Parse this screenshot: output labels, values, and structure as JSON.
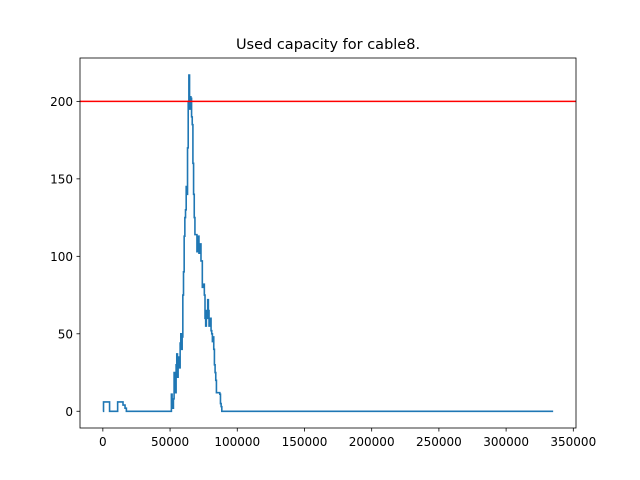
{
  "chart_data": {
    "type": "line",
    "title": "Used capacity for cable8.",
    "xlabel": "",
    "ylabel": "",
    "xlim": [
      -17000,
      352000
    ],
    "ylim": [
      -10.8,
      228
    ],
    "x_ticks": [
      0,
      50000,
      100000,
      150000,
      200000,
      250000,
      300000,
      350000
    ],
    "x_tick_labels": [
      "0",
      "50000",
      "100000",
      "150000",
      "200000",
      "250000",
      "300000",
      "350000"
    ],
    "y_ticks": [
      0,
      50,
      100,
      150,
      200
    ],
    "y_tick_labels": [
      "0",
      "50",
      "100",
      "150",
      "200"
    ],
    "grid": false,
    "series": [
      {
        "color": "#1f77b4",
        "step": true,
        "x": [
          0,
          500,
          4500,
          5000,
          10500,
          11000,
          12000,
          13000,
          15000,
          16500,
          17500,
          40000,
          50500,
          51000,
          51500,
          52000,
          52500,
          53000,
          53500,
          54000,
          54500,
          55000,
          55500,
          56000,
          56500,
          57000,
          57500,
          58000,
          58500,
          59000,
          59500,
          60000,
          60500,
          61000,
          61500,
          62000,
          62500,
          63000,
          63500,
          64000,
          64500,
          65000,
          65500,
          66000,
          66500,
          67000,
          67500,
          68000,
          68500,
          69000,
          69500,
          70000,
          70500,
          71000,
          71500,
          72000,
          73000,
          74000,
          75000,
          75500,
          76000,
          76500,
          77000,
          77500,
          78000,
          78500,
          79000,
          80000,
          80500,
          81000,
          81500,
          82000,
          82500,
          83000,
          83500,
          84000,
          84500,
          85000,
          85500,
          86000,
          86500,
          87000,
          87500,
          88000,
          88500,
          89000,
          89500,
          90000,
          91000,
          94000,
          96000,
          98000,
          100000,
          102000,
          103000,
          104000,
          105000,
          335000
        ],
        "y": [
          0,
          6,
          6,
          0,
          0,
          6,
          6,
          6,
          4,
          2,
          0,
          0,
          0,
          11,
          3,
          2,
          8,
          25,
          20,
          12,
          30,
          37,
          22,
          35,
          33,
          28,
          44,
          50,
          40,
          48,
          75,
          90,
          113,
          125,
          130,
          145,
          140,
          170,
          200,
          217,
          195,
          203,
          202,
          190,
          185,
          160,
          140,
          125,
          114,
          114,
          114,
          103,
          110,
          113,
          102,
          108,
          97,
          80,
          82,
          75,
          60,
          55,
          65,
          60,
          72,
          65,
          55,
          60,
          52,
          50,
          45,
          48,
          40,
          30,
          25,
          20,
          12,
          12,
          12,
          12,
          12,
          11,
          5,
          3,
          0,
          0,
          0,
          0,
          0,
          0,
          0,
          0,
          0,
          0,
          0,
          0,
          0,
          0
        ]
      },
      {
        "color": "#ff0000",
        "type": "hline",
        "y": 200
      }
    ]
  }
}
